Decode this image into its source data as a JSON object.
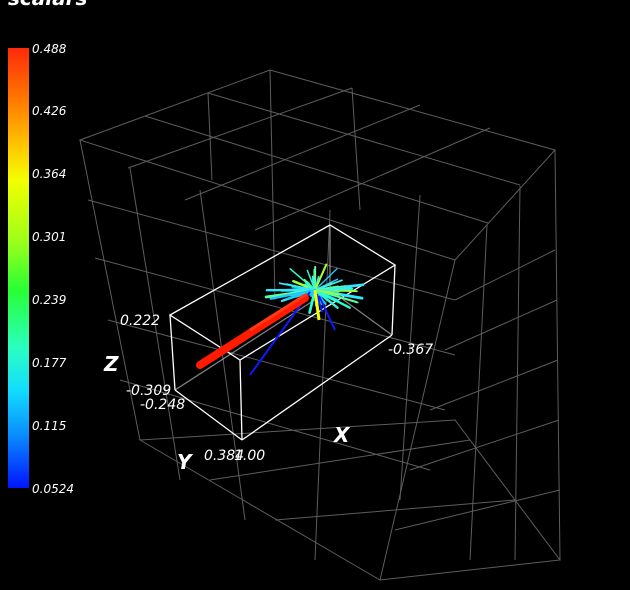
{
  "colorbar": {
    "title": "scalars",
    "min": 0.0524,
    "max": 0.488,
    "labels": [
      "0.488",
      "0.426",
      "0.364",
      "0.301",
      "0.239",
      "0.177",
      "0.115",
      "0.0524"
    ]
  },
  "axes": {
    "x_title": "X",
    "y_title": "Y",
    "z_title": "Z",
    "z_max_label": "0.222",
    "z_min_label": "-0.309",
    "y_min_label": "-0.248",
    "y_max_label": "0.384",
    "x_max_label": "1.00",
    "x_min_label": "-0.367"
  },
  "colors": {
    "background": "#000000",
    "grid": "#6e6e6e",
    "bounding_box": "#ffffff",
    "glyph_max": "#ff1a00",
    "glyph_mid": "#28ffd0",
    "glyph_min": "#0a1cff"
  }
}
